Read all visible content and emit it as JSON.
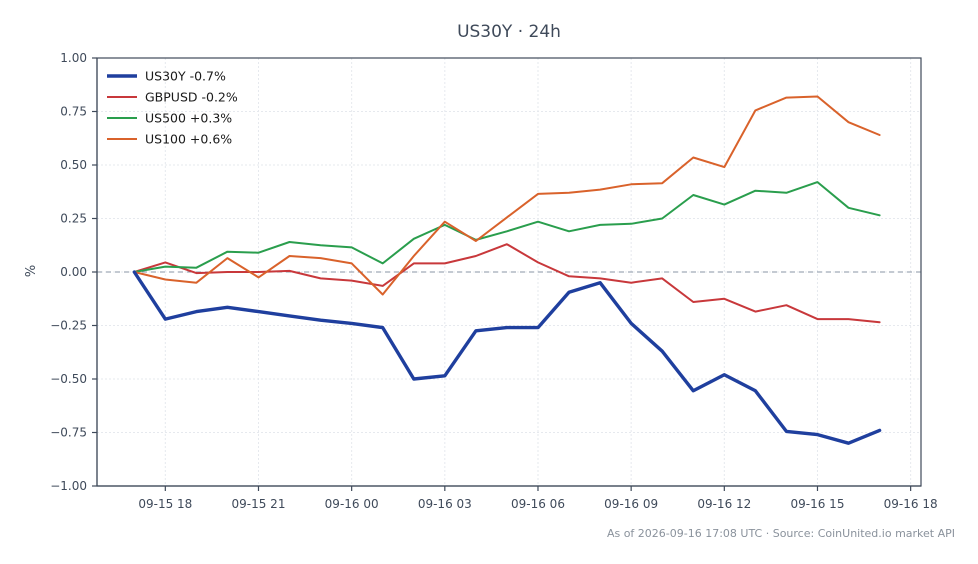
{
  "chart_data": {
    "type": "line",
    "title": "US30Y · 24h",
    "xlabel": "",
    "ylabel": "%",
    "ylim": [
      -1.0,
      1.0
    ],
    "yticks": [
      1.0,
      0.75,
      0.5,
      0.25,
      0.0,
      -0.25,
      -0.5,
      -0.75,
      -1.0
    ],
    "ytick_labels": [
      "1.00",
      "0.75",
      "0.50",
      "0.25",
      "0.00",
      "−0.25",
      "−0.50",
      "−0.75",
      "−1.00"
    ],
    "xlim": [
      "2026-09-15 15:48",
      "2026-09-16 18:20"
    ],
    "xticks": [
      "2026-09-15 18:00",
      "2026-09-15 21:00",
      "2026-09-16 00:00",
      "2026-09-16 03:00",
      "2026-09-16 06:00",
      "2026-09-16 09:00",
      "2026-09-16 12:00",
      "2026-09-16 15:00",
      "2026-09-16 18:00"
    ],
    "xtick_labels": [
      "09-15 18",
      "09-15 21",
      "09-16 00",
      "09-16 03",
      "09-16 06",
      "09-16 09",
      "09-16 12",
      "09-16 15",
      "09-16 18"
    ],
    "grid": true,
    "legend_position": "top-left",
    "x": [
      "2026-09-15 17:00",
      "2026-09-15 18:00",
      "2026-09-15 19:00",
      "2026-09-15 20:00",
      "2026-09-15 21:00",
      "2026-09-15 22:00",
      "2026-09-15 23:00",
      "2026-09-16 00:00",
      "2026-09-16 01:00",
      "2026-09-16 02:00",
      "2026-09-16 03:00",
      "2026-09-16 04:00",
      "2026-09-16 05:00",
      "2026-09-16 06:00",
      "2026-09-16 07:00",
      "2026-09-16 08:00",
      "2026-09-16 09:00",
      "2026-09-16 10:00",
      "2026-09-16 11:00",
      "2026-09-16 12:00",
      "2026-09-16 13:00",
      "2026-09-16 14:00",
      "2026-09-16 15:00",
      "2026-09-16 16:00",
      "2026-09-16 17:00"
    ],
    "series": [
      {
        "name": "US30Y -0.7%",
        "color": "#1f3f9e",
        "width": 3.4,
        "values": [
          0.0,
          -0.22,
          -0.185,
          -0.165,
          -0.185,
          -0.205,
          -0.225,
          -0.24,
          -0.26,
          -0.5,
          -0.485,
          -0.275,
          -0.26,
          -0.26,
          -0.095,
          -0.05,
          -0.24,
          -0.37,
          -0.555,
          -0.48,
          -0.555,
          -0.745,
          -0.76,
          -0.8,
          -0.74
        ]
      },
      {
        "name": "GBPUSD -0.2%",
        "color": "#c8383b",
        "width": 2,
        "values": [
          0.0,
          0.045,
          -0.005,
          0.0,
          0.0,
          0.005,
          -0.03,
          -0.04,
          -0.065,
          0.04,
          0.04,
          0.075,
          0.13,
          0.045,
          -0.02,
          -0.03,
          -0.05,
          -0.03,
          -0.14,
          -0.125,
          -0.185,
          -0.155,
          -0.22,
          -0.22,
          -0.235
        ]
      },
      {
        "name": "US500 +0.3%",
        "color": "#2a9e4d",
        "width": 2,
        "values": [
          0.0,
          0.025,
          0.02,
          0.095,
          0.09,
          0.14,
          0.125,
          0.115,
          0.04,
          0.155,
          0.22,
          0.15,
          0.19,
          0.235,
          0.19,
          0.22,
          0.225,
          0.25,
          0.36,
          0.315,
          0.38,
          0.37,
          0.42,
          0.3,
          0.265
        ]
      },
      {
        "name": "US100 +0.6%",
        "color": "#d9622b",
        "width": 2,
        "values": [
          0.0,
          -0.035,
          -0.05,
          0.065,
          -0.025,
          0.075,
          0.065,
          0.04,
          -0.105,
          0.075,
          0.235,
          0.145,
          0.255,
          0.365,
          0.37,
          0.385,
          0.41,
          0.415,
          0.535,
          0.49,
          0.755,
          0.815,
          0.82,
          0.7,
          0.64
        ]
      }
    ],
    "footer": "As of 2026-09-16 17:08 UTC · Source: CoinUnited.io market API"
  }
}
